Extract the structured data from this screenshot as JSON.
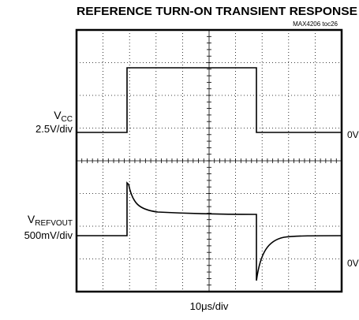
{
  "title": "REFERENCE TURN-ON TRANSIENT RESPONSE",
  "code": "MAX4206 toc26",
  "channels": [
    {
      "name": "V",
      "sub": "CC",
      "scale": "2.5V/div",
      "ground": "0V"
    },
    {
      "name": "V",
      "sub": "REFVOUT",
      "scale": "500mV/div",
      "ground": "0V"
    }
  ],
  "timebase": "10μs/div"
}
